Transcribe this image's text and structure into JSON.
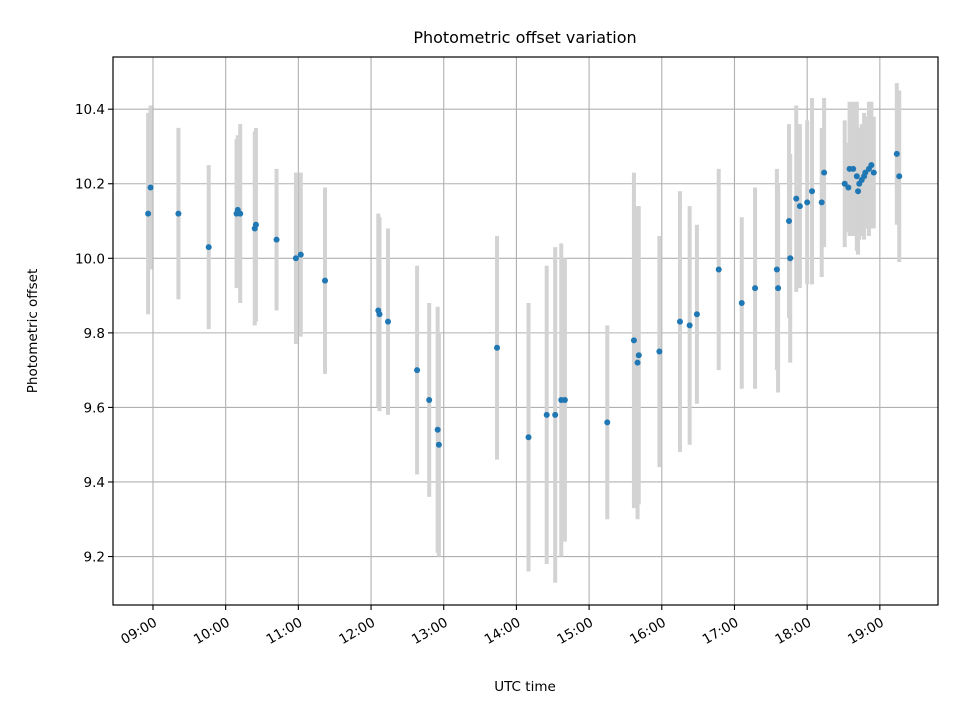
{
  "chart_data": {
    "type": "scatter",
    "title": "Photometric offset variation",
    "xlabel": "UTC time",
    "ylabel": "Photometric offset",
    "x_format": "HH:MM",
    "xlim": [
      "08:27",
      "19:48"
    ],
    "ylim": [
      9.07,
      10.54
    ],
    "x_ticks": [
      "09:00",
      "10:00",
      "11:00",
      "12:00",
      "13:00",
      "14:00",
      "15:00",
      "16:00",
      "17:00",
      "18:00",
      "19:00"
    ],
    "y_ticks": [
      9.2,
      9.4,
      9.6,
      9.8,
      10.0,
      10.2,
      10.4
    ],
    "y_tick_labels": [
      "9.2",
      "9.4",
      "9.6",
      "9.8",
      "10.0",
      "10.2",
      "10.4"
    ],
    "grid": true,
    "colors": {
      "marker": "#1f77b4",
      "errorbar": "#d3d3d3",
      "grid": "#b0b0b0"
    },
    "series": [
      {
        "x": [
          "08:56",
          "08:58",
          "09:21",
          "09:46",
          "10:09",
          "10:10",
          "10:12",
          "10:24",
          "10:25",
          "10:42",
          "10:58",
          "11:02",
          "11:22",
          "12:06",
          "12:07",
          "12:14",
          "12:38",
          "12:48",
          "12:55",
          "12:56",
          "13:44",
          "14:10",
          "14:25",
          "14:32",
          "14:37",
          "14:40",
          "15:15",
          "15:37",
          "15:40",
          "15:41",
          "15:58",
          "16:15",
          "16:23",
          "16:29",
          "16:47",
          "17:06",
          "17:17",
          "17:35",
          "17:36",
          "17:45",
          "17:46",
          "17:51",
          "17:54",
          "18:00",
          "18:04",
          "18:12",
          "18:14",
          "18:31",
          "18:34",
          "18:35",
          "18:38",
          "18:41",
          "18:42",
          "18:43",
          "18:45",
          "18:47",
          "18:48",
          "18:51",
          "18:53",
          "18:55",
          "19:14",
          "19:16"
        ],
        "y": [
          10.12,
          10.19,
          10.12,
          10.03,
          10.12,
          10.13,
          10.12,
          10.08,
          10.09,
          10.05,
          10.0,
          10.01,
          9.94,
          9.86,
          9.85,
          9.83,
          9.7,
          9.62,
          9.54,
          9.5,
          9.76,
          9.52,
          9.58,
          9.58,
          9.62,
          9.62,
          9.56,
          9.78,
          9.72,
          9.74,
          9.75,
          9.83,
          9.82,
          9.85,
          9.97,
          9.88,
          9.92,
          9.97,
          9.92,
          10.1,
          10.0,
          10.16,
          10.14,
          10.15,
          10.18,
          10.15,
          10.23,
          10.2,
          10.19,
          10.24,
          10.24,
          10.22,
          10.18,
          10.2,
          10.21,
          10.22,
          10.23,
          10.24,
          10.25,
          10.23,
          10.28,
          10.22
        ],
        "yerr": [
          0.27,
          0.22,
          0.23,
          0.22,
          0.2,
          0.2,
          0.24,
          0.26,
          0.26,
          0.19,
          0.23,
          0.22,
          0.25,
          0.26,
          0.26,
          0.25,
          0.28,
          0.26,
          0.33,
          0.3,
          0.3,
          0.36,
          0.4,
          0.45,
          0.42,
          0.38,
          0.26,
          0.45,
          0.42,
          0.4,
          0.31,
          0.35,
          0.32,
          0.24,
          0.27,
          0.23,
          0.27,
          0.27,
          0.28,
          0.26,
          0.28,
          0.25,
          0.22,
          0.22,
          0.25,
          0.2,
          0.2,
          0.17,
          0.12,
          0.18,
          0.18,
          0.2,
          0.17,
          0.15,
          0.15,
          0.17,
          0.15,
          0.18,
          0.17,
          0.15,
          0.19,
          0.23
        ]
      }
    ]
  }
}
